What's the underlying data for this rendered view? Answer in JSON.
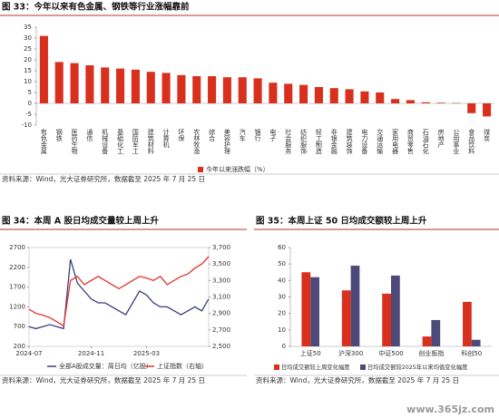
{
  "watermark": "www.365jz.com",
  "chart_data": [
    {
      "type": "bar",
      "title": "图 33：今年以来有色金属、钢铁等行业涨幅靠前",
      "source": "资料来源：Wind，光大证券研究所，数据截至 2025 年 7 月 25 日",
      "categories": [
        "有色金属",
        "钢铁",
        "医药生物",
        "通信",
        "机械设备",
        "基础化工",
        "国防军工",
        "建筑材料",
        "计算机",
        "环保",
        "农林牧渔",
        "综合",
        "美容护理",
        "汽车",
        "银行",
        "电子",
        "社会服务",
        "纺织服饰",
        "轻工制造",
        "非银金融",
        "建筑装饰",
        "电力设备",
        "交通运输",
        "家用电器",
        "商贸零售",
        "石油石化",
        "房地产",
        "公用事业",
        "食品饮料",
        "煤炭"
      ],
      "series": [
        {
          "name": "今年以来涨跌幅（%）",
          "color": "#d9301e",
          "values": [
            31,
            19,
            18.5,
            17.5,
            16.5,
            16,
            15.5,
            14.5,
            14,
            13,
            12.5,
            12.5,
            12,
            12,
            11.5,
            9.5,
            9,
            8.5,
            7.5,
            7,
            6.5,
            5.5,
            5,
            2,
            1.5,
            0.5,
            0.3,
            0.2,
            -4.5,
            -6
          ]
        }
      ],
      "ylim": [
        -10,
        35
      ],
      "yticks": [
        -10,
        -5,
        0,
        5,
        10,
        15,
        20,
        25,
        30,
        35
      ]
    },
    {
      "type": "line",
      "title": "图 34：本周 A 股日均成交量较上周上升",
      "source": "资料来源：Wind，光大证券研究所，数据截至 2025 年 7 月 25 日",
      "categories": [
        "2024-07",
        null,
        null,
        null,
        null,
        null,
        null,
        null,
        null,
        "2024-11",
        null,
        null,
        null,
        null,
        null,
        null,
        null,
        "2025-03",
        null,
        null,
        null,
        null,
        null,
        null,
        null,
        null,
        null
      ],
      "series": [
        {
          "name": "全部A股成交量：周日均（亿股）",
          "color": "#3b3e7a",
          "values": [
            700,
            650,
            700,
            750,
            700,
            650,
            2400,
            1800,
            1600,
            1400,
            1300,
            1300,
            1200,
            1100,
            1000,
            1300,
            1600,
            1500,
            1300,
            1200,
            1200,
            1100,
            1000,
            1100,
            1200,
            1100,
            1400
          ]
        },
        {
          "name": "上证指数（右轴）",
          "color": "#e0332a",
          "axis": "y2",
          "values": [
            2950,
            2900,
            2880,
            2850,
            2800,
            2750,
            3300,
            3350,
            3250,
            3300,
            3350,
            3300,
            3250,
            3200,
            3250,
            3300,
            3350,
            3330,
            3300,
            3350,
            3250,
            3300,
            3350,
            3380,
            3450,
            3500,
            3590
          ]
        }
      ],
      "ylim": [
        200,
        2700
      ],
      "yticks": [
        200,
        700,
        1200,
        1700,
        2200,
        2700
      ],
      "y2lim": [
        2500,
        3700
      ],
      "y2ticks": [
        {
          "value": 2500,
          "label": "2,500"
        },
        {
          "value": 2700,
          "label": "2,700"
        },
        {
          "value": 2900,
          "label": "2,900"
        },
        {
          "value": 3100,
          "label": "3,100"
        },
        {
          "value": 3300,
          "label": "3,300"
        },
        {
          "value": 3500,
          "label": "3,500"
        },
        {
          "value": 3700,
          "label": "3,700"
        }
      ]
    },
    {
      "type": "grouped_bar",
      "title": "图 35：本周上证 50 日均成交额较上周上升",
      "source": "资料来源：Wind，光大证券研究所，数据截至 2025 年 7 月 25 日",
      "categories": [
        "上证50",
        "沪深300",
        "中证500",
        "创业板指",
        "科创50"
      ],
      "series": [
        {
          "name": "日均成交额较上周变化幅度",
          "color": "#d9301e",
          "values": [
            45,
            34,
            32,
            6,
            27
          ]
        },
        {
          "name": "日均成交额较2025年以来均值变化幅度",
          "color": "#4d4a7a",
          "values": [
            42,
            49,
            43,
            16,
            4
          ]
        }
      ],
      "ylim": [
        0,
        60
      ],
      "yticks": [
        0,
        10,
        20,
        30,
        40,
        50,
        60
      ]
    }
  ]
}
